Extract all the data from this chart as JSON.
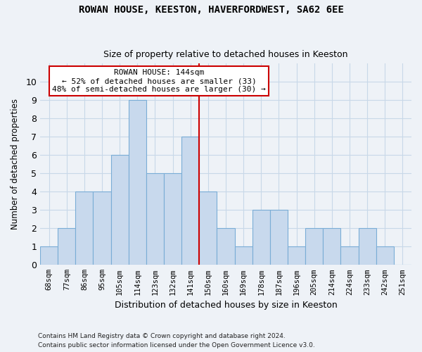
{
  "title1": "ROWAN HOUSE, KEESTON, HAVERFORDWEST, SA62 6EE",
  "title2": "Size of property relative to detached houses in Keeston",
  "xlabel": "Distribution of detached houses by size in Keeston",
  "ylabel": "Number of detached properties",
  "footer1": "Contains HM Land Registry data © Crown copyright and database right 2024.",
  "footer2": "Contains public sector information licensed under the Open Government Licence v3.0.",
  "bin_labels": [
    "68sqm",
    "77sqm",
    "86sqm",
    "95sqm",
    "105sqm",
    "114sqm",
    "123sqm",
    "132sqm",
    "141sqm",
    "150sqm",
    "160sqm",
    "169sqm",
    "178sqm",
    "187sqm",
    "196sqm",
    "205sqm",
    "214sqm",
    "224sqm",
    "233sqm",
    "242sqm",
    "251sqm"
  ],
  "bar_heights": [
    1,
    2,
    4,
    4,
    6,
    9,
    5,
    5,
    7,
    4,
    2,
    1,
    3,
    3,
    1,
    2,
    2,
    1,
    2,
    1,
    0
  ],
  "bar_color": "#c8d9ed",
  "bar_edge_color": "#7aadd6",
  "vline_color": "#cc0000",
  "vline_x_index": 8,
  "annotation_text": "ROWAN HOUSE: 144sqm\n← 52% of detached houses are smaller (33)\n48% of semi-detached houses are larger (30) →",
  "annotation_box_color": "#ffffff",
  "annotation_box_edge_color": "#cc0000",
  "ylim": [
    0,
    11
  ],
  "yticks": [
    0,
    1,
    2,
    3,
    4,
    5,
    6,
    7,
    8,
    9,
    10,
    11
  ],
  "grid_color": "#c8d8e8",
  "background_color": "#eef2f7"
}
